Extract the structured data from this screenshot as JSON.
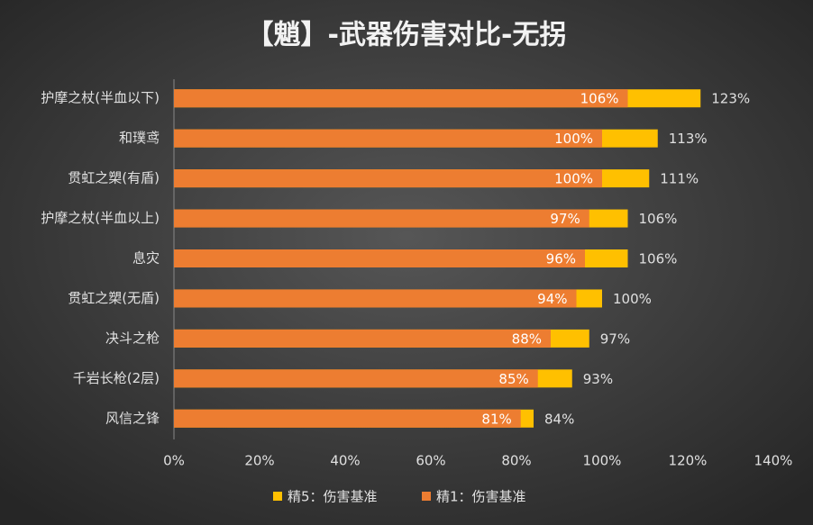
{
  "chart_data": {
    "type": "bar_overlap_horizontal",
    "title": "【魈】-武器伤害对比-无拐",
    "categories": [
      "护摩之杖(半血以下)",
      "和璞鸢",
      "贯虹之槊(有盾)",
      "护摩之杖(半血以上)",
      "息灾",
      "贯虹之槊(无盾)",
      "决斗之枪",
      "千岩长枪(2层)",
      "风信之锋"
    ],
    "series": [
      {
        "name": "精5：伤害基准",
        "color": "#ffc000",
        "values": [
          123,
          113,
          111,
          106,
          106,
          100,
          97,
          93,
          84
        ],
        "value_labels": [
          "123%",
          "113%",
          "111%",
          "106%",
          "106%",
          "100%",
          "97%",
          "93%",
          "84%"
        ]
      },
      {
        "name": "精1：伤害基准",
        "color": "#ed7d31",
        "values": [
          106,
          100,
          100,
          97,
          96,
          94,
          88,
          85,
          81
        ],
        "value_labels": [
          "106%",
          "100%",
          "100%",
          "97%",
          "96%",
          "94%",
          "88%",
          "85%",
          "81%"
        ]
      }
    ],
    "xlim": [
      0,
      140
    ],
    "xticks": [
      {
        "value": 0,
        "label": "0%"
      },
      {
        "value": 20,
        "label": "20%"
      },
      {
        "value": 40,
        "label": "40%"
      },
      {
        "value": 60,
        "label": "60%"
      },
      {
        "value": 80,
        "label": "80%"
      },
      {
        "value": 100,
        "label": "100%"
      },
      {
        "value": 120,
        "label": "120%"
      },
      {
        "value": 140,
        "label": "140%"
      }
    ],
    "grid": false,
    "legend": "bottom"
  }
}
